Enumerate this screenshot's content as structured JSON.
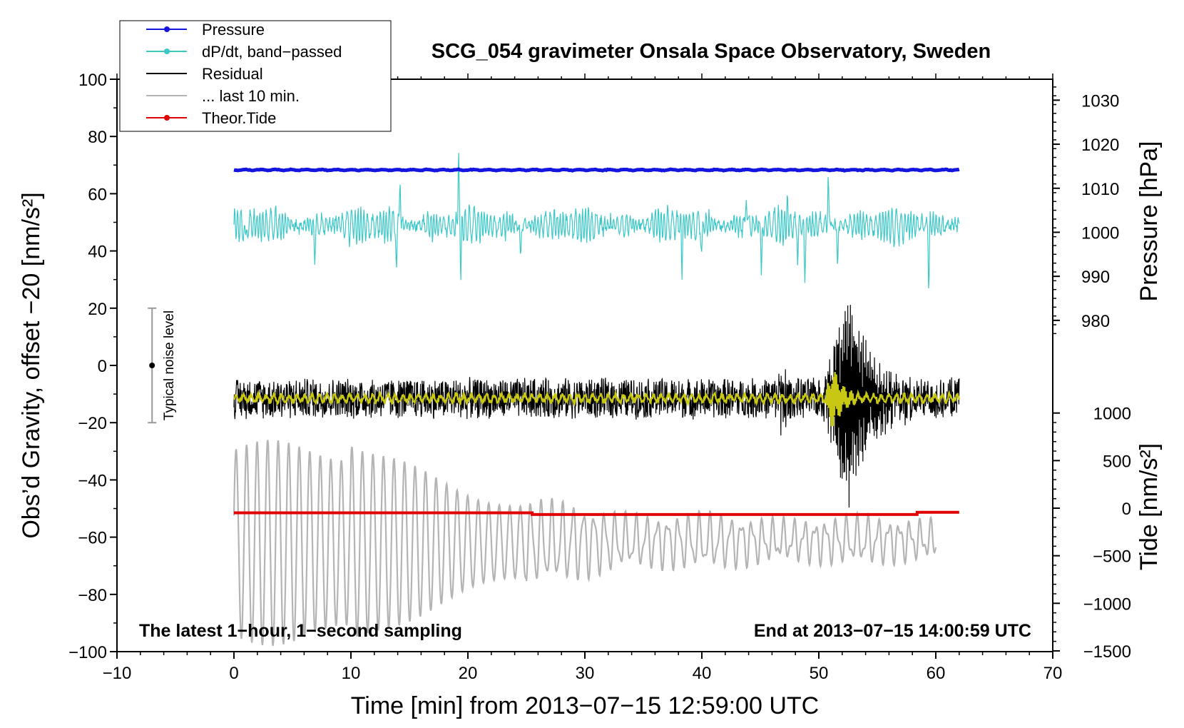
{
  "chart_data": {
    "type": "line",
    "title": "SCG_054 gravimeter Onsala Space Observatory, Sweden",
    "xlabel": "Time [min] from 2013−07−15 12:59:00 UTC",
    "ylabel_left": "Obs’d Gravity, offset −20 [nm/s²]",
    "ylabel_right_upper": "Pressure [hPa]",
    "ylabel_right_lower": "Tide [nm/s²]",
    "xlim": [
      -10,
      70
    ],
    "ylim_left": [
      -100,
      100
    ],
    "xticks": [
      "−10",
      "0",
      "10",
      "20",
      "30",
      "40",
      "50",
      "60",
      "70"
    ],
    "yticks_left": [
      "−100",
      "−80",
      "−60",
      "−40",
      "−20",
      "0",
      "20",
      "40",
      "60",
      "80",
      "100"
    ],
    "pressure_axis": {
      "ticks": [
        "980",
        "990",
        "1000",
        "1010",
        "1020",
        "1030"
      ],
      "values": [
        980,
        990,
        1000,
        1010,
        1020,
        1030
      ]
    },
    "tide_axis": {
      "ticks": [
        "−1500",
        "−1000",
        "−500",
        "0",
        "500",
        "1000"
      ],
      "values": [
        -1500,
        -1000,
        -500,
        0,
        500,
        1000
      ]
    },
    "legend": {
      "placement": "top-left",
      "entries": [
        {
          "label": "Pressure",
          "color": "#1515e0",
          "marker": true
        },
        {
          "label": "dP/dt, band−passed",
          "color": "#3cc8c8",
          "marker": true
        },
        {
          "label": "Residual",
          "color": "#000000",
          "marker": false
        },
        {
          "label": "... last 10 min.",
          "color": "#b4b4b4",
          "marker": false
        },
        {
          "label": "Theor.Tide",
          "color": "#e00000",
          "marker": true
        }
      ]
    },
    "series": [
      {
        "name": "Pressure",
        "color": "#1515e0",
        "x_range": [
          0,
          62
        ],
        "level": 68.3,
        "pressure_hPa": 1014.5
      },
      {
        "name": "dP/dt, band−passed",
        "color": "#3cc8c8",
        "x_range": [
          0,
          62
        ],
        "center": 49,
        "spikes": [
          [
            1.0,
            40
          ],
          [
            6.9,
            36
          ],
          [
            13.9,
            34
          ],
          [
            14.2,
            67
          ],
          [
            19.2,
            73
          ],
          [
            19.4,
            34
          ],
          [
            24.5,
            37
          ],
          [
            38.3,
            35
          ],
          [
            40.0,
            36
          ],
          [
            43.8,
            62
          ],
          [
            45.1,
            33
          ],
          [
            47.3,
            56
          ],
          [
            48.2,
            38
          ],
          [
            48.8,
            29
          ],
          [
            50.8,
            67
          ],
          [
            51.6,
            34
          ],
          [
            59.4,
            30
          ]
        ]
      },
      {
        "name": "Residual",
        "color": "#000000",
        "x_range": [
          0,
          62
        ],
        "center": -11.5,
        "event": {
          "start": 50.3,
          "peak": 52.6,
          "max": 27,
          "min": -49
        }
      },
      {
        "name": "smoothed residual",
        "color": "#c8c814",
        "x_range": [
          0,
          62
        ],
        "center": -11.5
      },
      {
        "name": "... last 10 min.",
        "color": "#b4b4b4",
        "x_range": [
          0,
          60
        ],
        "peaks": [
          [
            1.0,
            -35
          ],
          [
            3.0,
            -27
          ],
          [
            4.7,
            -28
          ],
          [
            6.5,
            -24
          ],
          [
            8.3,
            -25
          ],
          [
            9.9,
            -26
          ]
        ],
        "troughs": [
          [
            0,
            -78
          ],
          [
            2.0,
            -88
          ],
          [
            3.9,
            -101
          ],
          [
            5.6,
            -99
          ],
          [
            7.4,
            -97
          ],
          [
            9.1,
            -95
          ]
        ]
      },
      {
        "name": "Theor.Tide",
        "color": "#e00000",
        "points": [
          [
            0,
            -51.5
          ],
          [
            25.5,
            -51.5
          ],
          [
            25.5,
            -52.1
          ],
          [
            58.4,
            -52.1
          ],
          [
            58.4,
            -51.3
          ],
          [
            62,
            -51.3
          ]
        ]
      }
    ],
    "noise_bar": {
      "x": -7,
      "low": -20,
      "high": 20,
      "center": 0,
      "label": "Typical noise level"
    },
    "annotations": {
      "left": "The latest 1−hour, 1−second sampling",
      "right": "End at 2013−07−15 14:00:59 UTC"
    },
    "grid": false
  }
}
